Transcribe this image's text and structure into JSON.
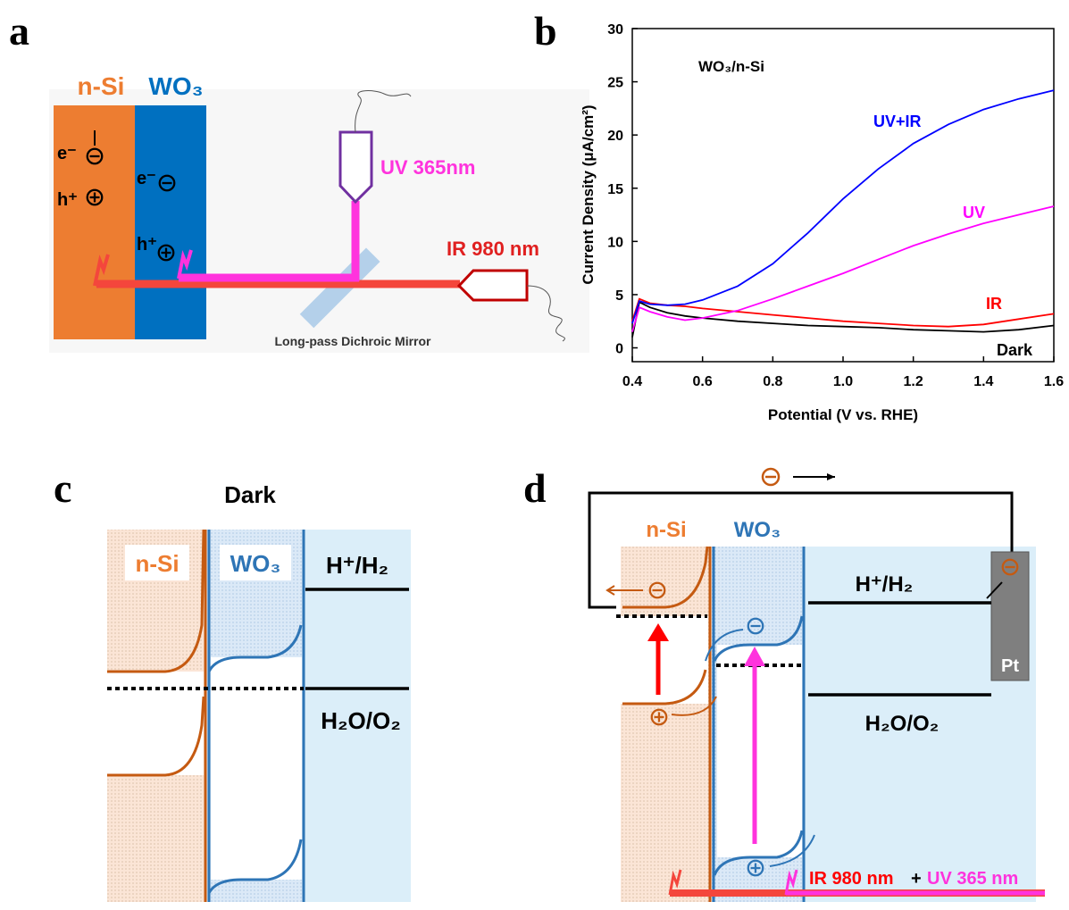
{
  "panel_labels": [
    "a",
    "b",
    "c",
    "d"
  ],
  "panel_a": {
    "n_si": "n-Si",
    "wo3": "WO₃",
    "e1": "e⁻",
    "h1": "h⁺",
    "e2": "e⁻",
    "h2": "h⁺",
    "uv": "UV 365nm",
    "ir": "IR 980 nm",
    "mirror": "Long-pass Dichroic Mirror"
  },
  "panel_c": {
    "title": "Dark",
    "n_si": "n-Si",
    "wo3": "WO₃",
    "redox1": "H⁺/H₂",
    "redox2": "H₂O/O₂"
  },
  "panel_d": {
    "n_si": "n-Si",
    "wo3": "WO₃",
    "redox1": "H⁺/H₂",
    "redox2": "H₂O/O₂",
    "pt": "Pt",
    "ir": "IR 980 nm",
    "plus": "+",
    "uv": "UV 365 nm"
  },
  "chart_data": {
    "type": "line",
    "annotation": "WO₃/n-Si",
    "x_label": "Potential (V vs. RHE)",
    "y_label": "Current Density (μA/cm²)",
    "x": [
      0.4,
      0.42,
      0.45,
      0.5,
      0.55,
      0.6,
      0.7,
      0.8,
      0.9,
      1.0,
      1.1,
      1.2,
      1.3,
      1.4,
      1.5,
      1.6
    ],
    "series": [
      {
        "name": "Dark",
        "color": "#000000",
        "values": [
          1,
          4.3,
          3.8,
          3.3,
          3.0,
          2.8,
          2.5,
          2.3,
          2.1,
          2.0,
          1.9,
          1.7,
          1.6,
          1.5,
          1.7,
          2.1
        ]
      },
      {
        "name": "IR",
        "color": "#ff0000",
        "values": [
          2.5,
          4.6,
          4.2,
          4.0,
          3.9,
          3.7,
          3.4,
          3.1,
          2.8,
          2.5,
          2.3,
          2.1,
          2.0,
          2.2,
          2.7,
          3.2
        ]
      },
      {
        "name": "UV",
        "color": "#ff00ff",
        "values": [
          1.5,
          3.8,
          3.4,
          2.9,
          2.6,
          2.8,
          3.5,
          4.6,
          5.8,
          7.0,
          8.3,
          9.6,
          10.7,
          11.7,
          12.5,
          13.3
        ]
      },
      {
        "name": "UV+IR",
        "color": "#0000ff",
        "values": [
          2.3,
          4.4,
          4.1,
          4.0,
          4.1,
          4.5,
          5.8,
          7.9,
          10.8,
          14.0,
          16.8,
          19.2,
          21.0,
          22.4,
          23.4,
          24.2
        ]
      }
    ],
    "xlim": [
      0.4,
      1.6
    ],
    "ylim": [
      -1.3,
      30
    ],
    "xticks": [
      0.4,
      0.6,
      0.8,
      {
        "value": 1.0,
        "label": "1.0"
      },
      1.2,
      1.4,
      1.6
    ],
    "yticks": [
      0,
      5,
      10,
      15,
      20,
      25,
      30
    ]
  }
}
